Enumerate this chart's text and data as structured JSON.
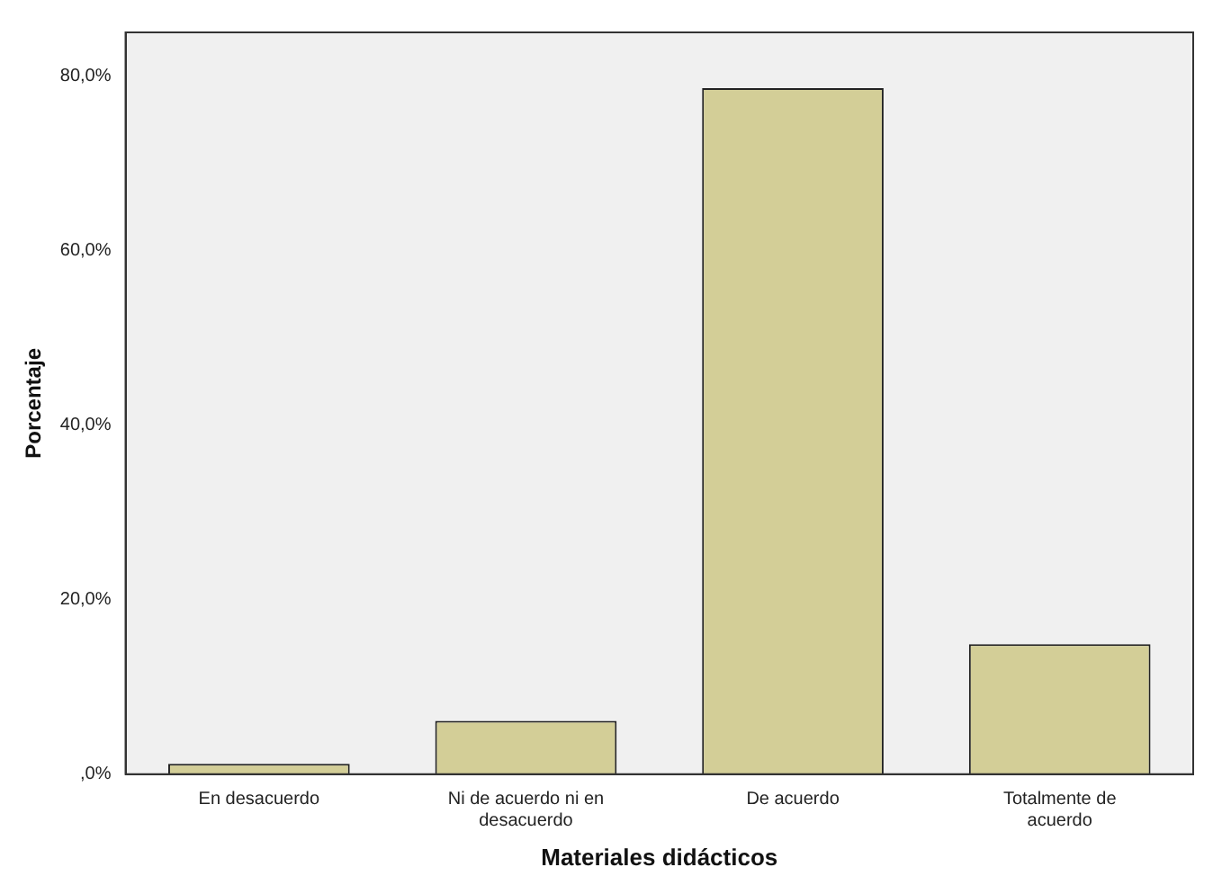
{
  "chart_data": {
    "type": "bar",
    "xlabel": "Materiales didácticos",
    "ylabel": "Porcentaje",
    "categories": [
      "En desacuerdo",
      "Ni de acuerdo ni en desacuerdo",
      "De acuerdo",
      "Totalmente de acuerdo"
    ],
    "values": [
      1.2,
      6.1,
      78.6,
      14.9
    ],
    "color": "#d3ce97",
    "ylim": [
      0,
      85
    ],
    "yticks": [
      {
        "value": 0,
        "label": ",0%"
      },
      {
        "value": 20,
        "label": "20,0%"
      },
      {
        "value": 40,
        "label": "40,0%"
      },
      {
        "value": 60,
        "label": "60,0%"
      },
      {
        "value": 80,
        "label": "80,0%"
      }
    ],
    "grid": false,
    "legend": false
  }
}
